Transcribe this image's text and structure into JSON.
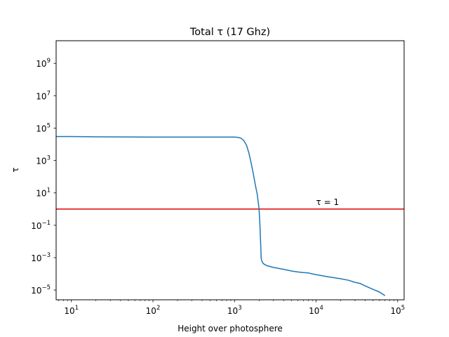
{
  "chart_data": {
    "type": "line",
    "title": "Total τ (17 Ghz)",
    "xlabel": "Height over photosphere",
    "ylabel": "τ",
    "x_scale": "log",
    "y_scale": "log",
    "xlim": [
      6.5,
      120000
    ],
    "ylim": [
      2.5e-06,
      25000000000.0
    ],
    "grid": false,
    "x_ticks": [
      {
        "value": 10,
        "base": "10",
        "exp": "1"
      },
      {
        "value": 100,
        "base": "10",
        "exp": "2"
      },
      {
        "value": 1000,
        "base": "10",
        "exp": "3"
      },
      {
        "value": 10000,
        "base": "10",
        "exp": "4"
      },
      {
        "value": 100000,
        "base": "10",
        "exp": "5"
      }
    ],
    "y_ticks": [
      {
        "value": 1e-05,
        "base": "10",
        "exp": "−5"
      },
      {
        "value": 0.001,
        "base": "10",
        "exp": "−3"
      },
      {
        "value": 0.1,
        "base": "10",
        "exp": "−1"
      },
      {
        "value": 10,
        "base": "10",
        "exp": "1"
      },
      {
        "value": 1000,
        "base": "10",
        "exp": "3"
      },
      {
        "value": 100000.0,
        "base": "10",
        "exp": "5"
      },
      {
        "value": 10000000.0,
        "base": "10",
        "exp": "7"
      },
      {
        "value": 1000000000.0,
        "base": "10",
        "exp": "9"
      }
    ],
    "series": [
      {
        "color": "#1f77b4",
        "x": [
          6.5,
          10,
          20,
          100,
          1000,
          1100,
          1200,
          1300,
          1400,
          1500,
          1600,
          1700,
          1800,
          1900,
          2000,
          2050,
          2100,
          2110,
          2120,
          2150,
          2200,
          2300,
          2500,
          3000,
          4000,
          5000,
          6000,
          7000,
          8000,
          9000,
          10000,
          13000,
          16000,
          20000,
          25000,
          30000,
          35000,
          40000,
          50000,
          60000,
          70000
        ],
        "y": [
          30000,
          30000,
          29000,
          28000,
          28000,
          27000,
          24000,
          17000,
          9000,
          3000,
          700,
          150,
          30,
          8,
          1,
          0.1,
          0.005,
          0.002,
          0.001,
          0.0007,
          0.0005,
          0.0004,
          0.00032,
          0.00025,
          0.00019,
          0.00015,
          0.00013,
          0.00012,
          0.000115,
          0.0001,
          9e-05,
          7e-05,
          6e-05,
          5e-05,
          4e-05,
          3e-05,
          2.5e-05,
          1.8e-05,
          1.1e-05,
          7.5e-06,
          4.5e-06
        ]
      }
    ],
    "reference_line": {
      "y": 1,
      "color": "#e00000",
      "label": "τ = 1",
      "label_x": 10000
    }
  }
}
